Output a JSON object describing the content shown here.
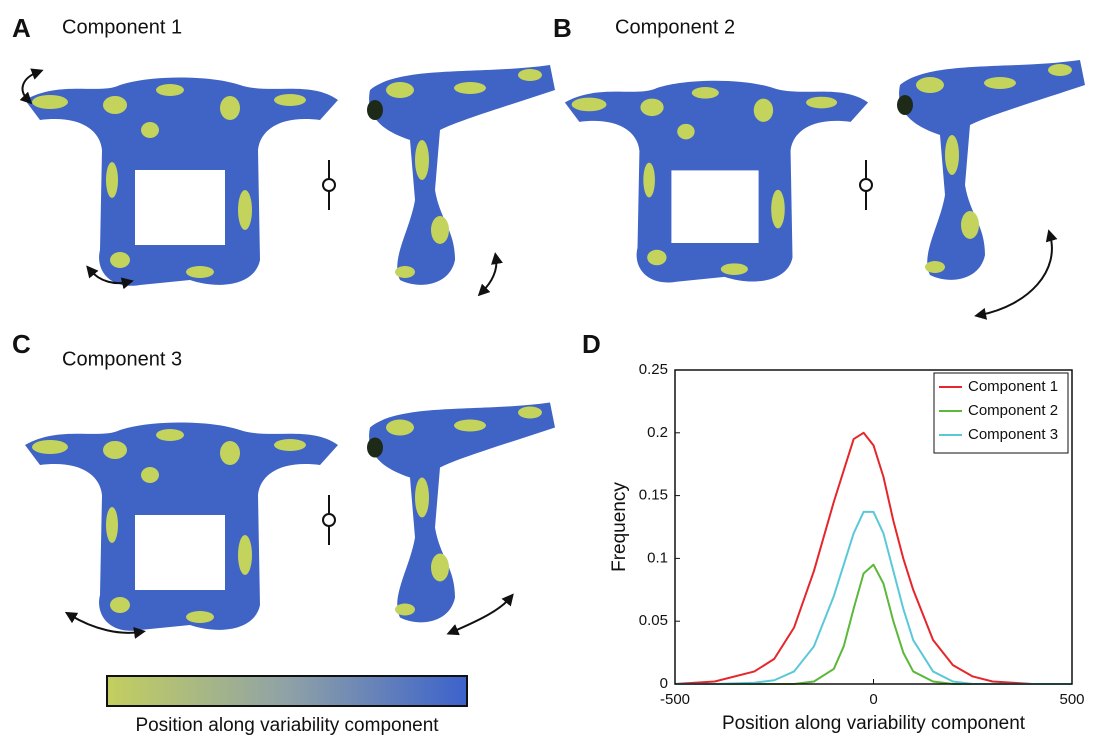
{
  "panels": [
    {
      "label": "A",
      "title": "Component 1"
    },
    {
      "label": "B",
      "title": "Component 2"
    },
    {
      "label": "C",
      "title": "Component 3"
    }
  ],
  "panel_d_label": "D",
  "colorbar": {
    "label": "Position along variability component"
  },
  "chart_data": {
    "type": "line",
    "xlabel": "Position along variability component",
    "ylabel": "Frequency",
    "x": [
      -500,
      -400,
      -300,
      -250,
      -200,
      -150,
      -100,
      -75,
      -50,
      -25,
      0,
      25,
      50,
      75,
      100,
      150,
      200,
      250,
      300,
      400,
      500
    ],
    "series": [
      {
        "name": "Component 1",
        "color": "#e5262b",
        "values": [
          0,
          0.002,
          0.01,
          0.02,
          0.045,
          0.09,
          0.145,
          0.17,
          0.195,
          0.2,
          0.19,
          0.165,
          0.13,
          0.1,
          0.075,
          0.035,
          0.015,
          0.006,
          0.002,
          0,
          0
        ]
      },
      {
        "name": "Component 2",
        "color": "#5cb83a",
        "values": [
          0,
          0,
          0,
          0,
          0,
          0.002,
          0.012,
          0.03,
          0.06,
          0.088,
          0.095,
          0.08,
          0.05,
          0.025,
          0.01,
          0.002,
          0,
          0,
          0,
          0,
          0
        ]
      },
      {
        "name": "Component 3",
        "color": "#5bc8d8",
        "values": [
          0,
          0,
          0.001,
          0.003,
          0.01,
          0.03,
          0.07,
          0.095,
          0.12,
          0.137,
          0.137,
          0.12,
          0.09,
          0.06,
          0.035,
          0.01,
          0.002,
          0,
          0,
          0,
          0
        ]
      }
    ],
    "xlim": [
      -500,
      500
    ],
    "ylim": [
      0,
      0.25
    ],
    "xticks": [
      -500,
      0,
      500
    ],
    "yticks": [
      0,
      0.05,
      0.1,
      0.15,
      0.2,
      0.25
    ],
    "legend": "top-right"
  }
}
